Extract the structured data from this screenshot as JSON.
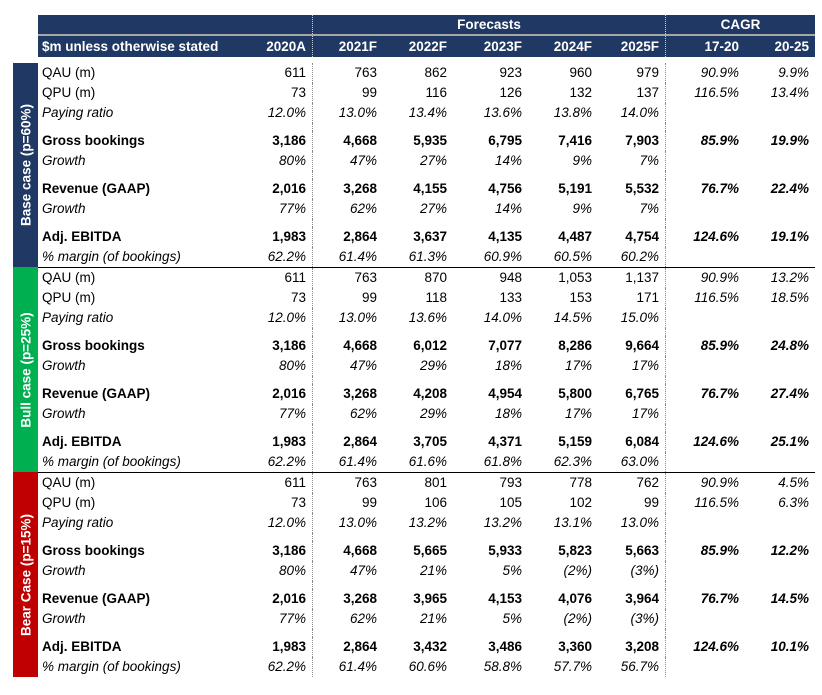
{
  "header": {
    "forecasts_label": "Forecasts",
    "cagr_label": "CAGR",
    "unit_label": "$m unless otherwise stated",
    "columns": [
      "2020A",
      "2021F",
      "2022F",
      "2023F",
      "2024F",
      "2025F",
      "17-20",
      "20-25"
    ]
  },
  "colors": {
    "navy": "#1F3864",
    "green": "#00B050",
    "red": "#C00000",
    "header_divider": "#A6A6A6"
  },
  "sections": [
    {
      "label": "Base case (p=60%)",
      "color": "#1F3864",
      "rows": [
        {
          "label": "QAU (m)",
          "values": [
            "611",
            "763",
            "862",
            "923",
            "960",
            "979",
            "90.9%",
            "9.9%"
          ]
        },
        {
          "label": "QPU (m)",
          "values": [
            "73",
            "99",
            "116",
            "126",
            "132",
            "137",
            "116.5%",
            "13.4%"
          ]
        },
        {
          "label": "Paying ratio",
          "italic": true,
          "gap_after": true,
          "values": [
            "12.0%",
            "13.0%",
            "13.4%",
            "13.6%",
            "13.8%",
            "14.0%",
            "",
            ""
          ]
        },
        {
          "label": "Gross bookings",
          "bold": true,
          "values": [
            "3,186",
            "4,668",
            "5,935",
            "6,795",
            "7,416",
            "7,903",
            "85.9%",
            "19.9%"
          ]
        },
        {
          "label": "Growth",
          "italic": true,
          "gap_after": true,
          "values": [
            "80%",
            "47%",
            "27%",
            "14%",
            "9%",
            "7%",
            "",
            ""
          ]
        },
        {
          "label": "Revenue (GAAP)",
          "bold": true,
          "values": [
            "2,016",
            "3,268",
            "4,155",
            "4,756",
            "5,191",
            "5,532",
            "76.7%",
            "22.4%"
          ]
        },
        {
          "label": "Growth",
          "italic": true,
          "gap_after": true,
          "values": [
            "77%",
            "62%",
            "27%",
            "14%",
            "9%",
            "7%",
            "",
            ""
          ]
        },
        {
          "label": "Adj. EBITDA",
          "bold": true,
          "values": [
            "1,983",
            "2,864",
            "3,637",
            "4,135",
            "4,487",
            "4,754",
            "124.6%",
            "19.1%"
          ]
        },
        {
          "label": "% margin (of bookings)",
          "italic": true,
          "values": [
            "62.2%",
            "61.4%",
            "61.3%",
            "60.9%",
            "60.5%",
            "60.2%",
            "",
            ""
          ]
        }
      ]
    },
    {
      "label": "Bull case (p=25%)",
      "color": "#00B050",
      "rows": [
        {
          "label": "QAU (m)",
          "values": [
            "611",
            "763",
            "870",
            "948",
            "1,053",
            "1,137",
            "90.9%",
            "13.2%"
          ]
        },
        {
          "label": "QPU (m)",
          "values": [
            "73",
            "99",
            "118",
            "133",
            "153",
            "171",
            "116.5%",
            "18.5%"
          ]
        },
        {
          "label": "Paying ratio",
          "italic": true,
          "gap_after": true,
          "values": [
            "12.0%",
            "13.0%",
            "13.6%",
            "14.0%",
            "14.5%",
            "15.0%",
            "",
            ""
          ]
        },
        {
          "label": "Gross bookings",
          "bold": true,
          "values": [
            "3,186",
            "4,668",
            "6,012",
            "7,077",
            "8,286",
            "9,664",
            "85.9%",
            "24.8%"
          ]
        },
        {
          "label": "Growth",
          "italic": true,
          "gap_after": true,
          "values": [
            "80%",
            "47%",
            "29%",
            "18%",
            "17%",
            "17%",
            "",
            ""
          ]
        },
        {
          "label": "Revenue (GAAP)",
          "bold": true,
          "values": [
            "2,016",
            "3,268",
            "4,208",
            "4,954",
            "5,800",
            "6,765",
            "76.7%",
            "27.4%"
          ]
        },
        {
          "label": "Growth",
          "italic": true,
          "gap_after": true,
          "values": [
            "77%",
            "62%",
            "29%",
            "18%",
            "17%",
            "17%",
            "",
            ""
          ]
        },
        {
          "label": "Adj. EBITDA",
          "bold": true,
          "values": [
            "1,983",
            "2,864",
            "3,705",
            "4,371",
            "5,159",
            "6,084",
            "124.6%",
            "25.1%"
          ]
        },
        {
          "label": "% margin (of bookings)",
          "italic": true,
          "values": [
            "62.2%",
            "61.4%",
            "61.6%",
            "61.8%",
            "62.3%",
            "63.0%",
            "",
            ""
          ]
        }
      ]
    },
    {
      "label": "Bear Case (p=15%)",
      "color": "#C00000",
      "rows": [
        {
          "label": "QAU (m)",
          "values": [
            "611",
            "763",
            "801",
            "793",
            "778",
            "762",
            "90.9%",
            "4.5%"
          ]
        },
        {
          "label": "QPU (m)",
          "values": [
            "73",
            "99",
            "106",
            "105",
            "102",
            "99",
            "116.5%",
            "6.3%"
          ]
        },
        {
          "label": "Paying ratio",
          "italic": true,
          "gap_after": true,
          "values": [
            "12.0%",
            "13.0%",
            "13.2%",
            "13.2%",
            "13.1%",
            "13.0%",
            "",
            ""
          ]
        },
        {
          "label": "Gross bookings",
          "bold": true,
          "values": [
            "3,186",
            "4,668",
            "5,665",
            "5,933",
            "5,823",
            "5,663",
            "85.9%",
            "12.2%"
          ]
        },
        {
          "label": "Growth",
          "italic": true,
          "gap_after": true,
          "values": [
            "80%",
            "47%",
            "21%",
            "5%",
            "(2%)",
            "(3%)",
            "",
            ""
          ]
        },
        {
          "label": "Revenue (GAAP)",
          "bold": true,
          "values": [
            "2,016",
            "3,268",
            "3,965",
            "4,153",
            "4,076",
            "3,964",
            "76.7%",
            "14.5%"
          ]
        },
        {
          "label": "Growth",
          "italic": true,
          "gap_after": true,
          "values": [
            "77%",
            "62%",
            "21%",
            "5%",
            "(2%)",
            "(3%)",
            "",
            ""
          ]
        },
        {
          "label": "Adj. EBITDA",
          "bold": true,
          "values": [
            "1,983",
            "2,864",
            "3,432",
            "3,486",
            "3,360",
            "3,208",
            "124.6%",
            "10.1%"
          ]
        },
        {
          "label": "% margin (of bookings)",
          "italic": true,
          "values": [
            "62.2%",
            "61.4%",
            "60.6%",
            "58.8%",
            "57.7%",
            "56.7%",
            "",
            ""
          ]
        }
      ]
    }
  ]
}
